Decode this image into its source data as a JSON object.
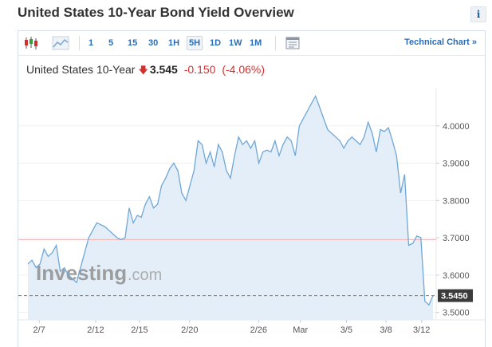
{
  "page": {
    "title": "United States 10-Year Bond Yield Overview",
    "info_label": "i"
  },
  "toolbar": {
    "timeframes": [
      "1",
      "5",
      "15",
      "30",
      "1H",
      "5H",
      "1D",
      "1W",
      "1M"
    ],
    "active_timeframe": "5H",
    "technical_chart_label": "Technical Chart »"
  },
  "quote": {
    "name": "United States 10-Year",
    "price": "3.545",
    "change": "-0.150",
    "change_pct": "(-4.06%)"
  },
  "colors": {
    "accent": "#2a6db6",
    "down": "#d32f2f",
    "line": "#6fa7d8",
    "fill": "#e4eef8",
    "ref_line": "#f2b7b7"
  },
  "watermark": {
    "brand": "Investing",
    "suffix": ".com"
  },
  "chart_data": {
    "type": "area",
    "x_tick_labels": [
      "2/7",
      "2/12",
      "2/15",
      "2/20",
      "2/26",
      "Mar",
      "3/5",
      "3/8",
      "3/12"
    ],
    "y_tick_labels": [
      "4.0000",
      "3.9000",
      "3.8000",
      "3.7000",
      "3.6000",
      "3.5000"
    ],
    "ylim": [
      3.48,
      4.1
    ],
    "previous_close": 3.695,
    "last_price_label": "3.5450",
    "last_price": 3.545,
    "values": [
      3.63,
      3.64,
      3.62,
      3.63,
      3.67,
      3.65,
      3.66,
      3.68,
      3.61,
      3.62,
      3.6,
      3.59,
      3.58,
      3.62,
      3.66,
      3.7,
      3.72,
      3.74,
      3.735,
      3.73,
      3.72,
      3.71,
      3.7,
      3.695,
      3.7,
      3.78,
      3.74,
      3.76,
      3.755,
      3.79,
      3.81,
      3.78,
      3.79,
      3.84,
      3.86,
      3.885,
      3.9,
      3.88,
      3.82,
      3.8,
      3.84,
      3.88,
      3.96,
      3.95,
      3.9,
      3.93,
      3.89,
      3.95,
      3.93,
      3.88,
      3.86,
      3.92,
      3.97,
      3.95,
      3.96,
      3.94,
      3.96,
      3.9,
      3.93,
      3.935,
      3.93,
      3.96,
      3.92,
      3.95,
      3.97,
      3.96,
      3.92,
      4.0,
      4.02,
      4.04,
      4.06,
      4.08,
      4.05,
      4.02,
      3.99,
      3.98,
      3.97,
      3.96,
      3.94,
      3.96,
      3.97,
      3.96,
      3.95,
      3.97,
      4.01,
      3.98,
      3.93,
      3.99,
      3.985,
      3.995,
      3.96,
      3.92,
      3.82,
      3.87,
      3.68,
      3.685,
      3.705,
      3.7,
      3.53,
      3.52,
      3.545
    ]
  }
}
